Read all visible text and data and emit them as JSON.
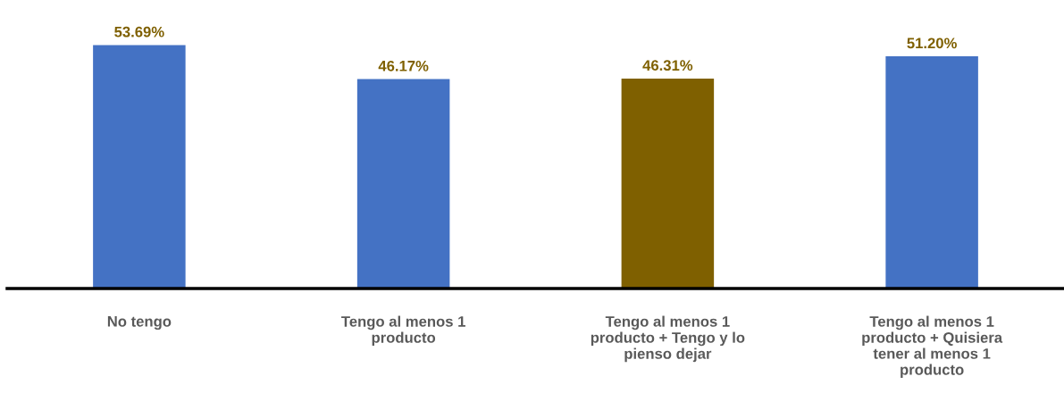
{
  "chart_data": {
    "type": "bar",
    "categories": [
      "No tengo",
      "Tengo al menos 1\nproducto",
      "Tengo al menos 1\nproducto + Tengo y lo\npienso dejar",
      "Tengo al menos 1\nproducto + Quisiera\ntener al menos 1\nproducto"
    ],
    "values": [
      53.69,
      46.17,
      46.31,
      51.2
    ],
    "colors": [
      "#4472c4",
      "#4472c4",
      "#7f6000",
      "#4472c4"
    ],
    "value_labels": [
      "53.69%",
      "46.17%",
      "46.31%",
      "51.20%"
    ],
    "grid": false,
    "legend": false
  }
}
